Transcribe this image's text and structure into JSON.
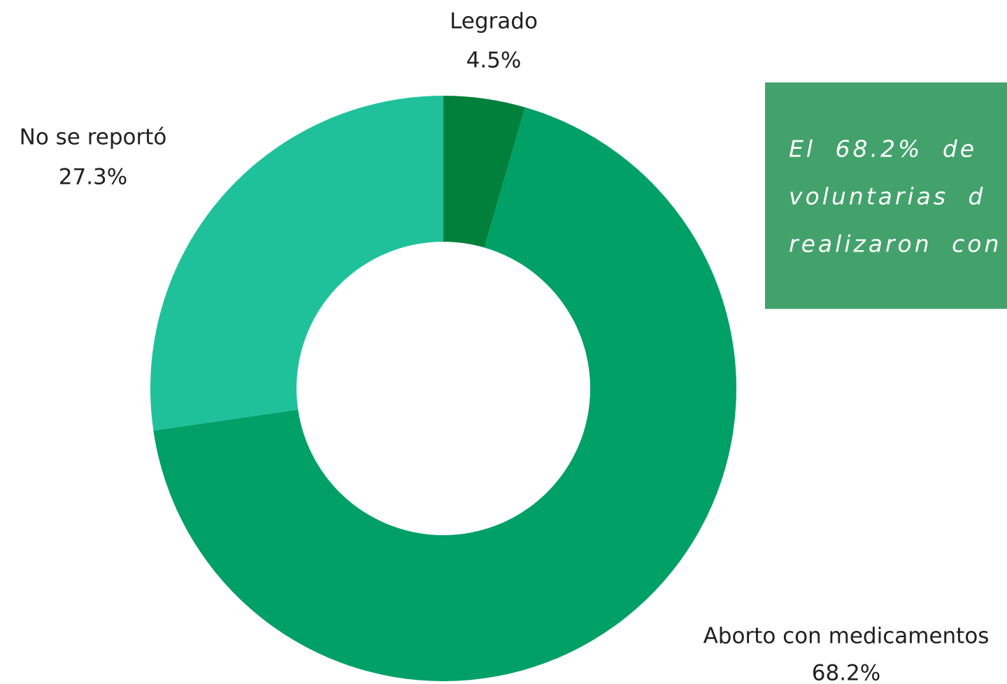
{
  "chart_data": {
    "type": "pie",
    "categories": [
      "Legrado",
      "Aborto con medicamentos",
      "No se reportó"
    ],
    "values": [
      4.5,
      68.2,
      27.3
    ],
    "value_labels": [
      "4.5%",
      "68.2%",
      "27.3%"
    ],
    "colors": [
      "#00803a",
      "#00a067",
      "#1fc19b"
    ],
    "annotation": [
      "El 68.2% de",
      "voluntarias d",
      "realizaron con"
    ]
  }
}
